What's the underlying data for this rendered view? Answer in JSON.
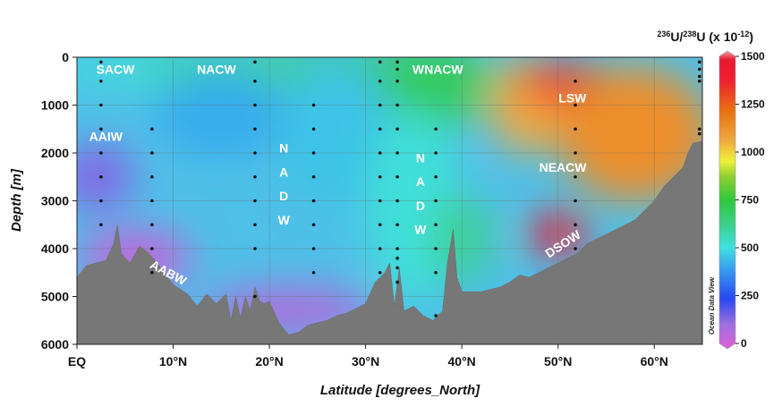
{
  "chart_data": {
    "type": "heatmap",
    "title": "",
    "xlabel": "Latitude [degrees_North]",
    "ylabel": "Depth [m]",
    "xlim": [
      0,
      65
    ],
    "ylim": [
      0,
      6000
    ],
    "x_ticks": [
      {
        "value": 0,
        "label": "EQ"
      },
      {
        "value": 10,
        "label": "10°N"
      },
      {
        "value": 20,
        "label": "20°N"
      },
      {
        "value": 30,
        "label": "30°N"
      },
      {
        "value": 40,
        "label": "40°N"
      },
      {
        "value": 50,
        "label": "50°N"
      },
      {
        "value": 60,
        "label": "60°N"
      }
    ],
    "y_ticks": [
      0,
      1000,
      2000,
      3000,
      4000,
      5000,
      6000
    ],
    "colorbar": {
      "title": {
        "base": "U/",
        "iso1": "236",
        "iso2": "238",
        "unit": "U (x 10",
        "exp": "-12",
        "close": ")"
      },
      "range": [
        0,
        1500
      ],
      "ticks": [
        0,
        250,
        500,
        750,
        1000,
        1250,
        1500
      ]
    },
    "credit": "Ocean Data View",
    "water_masses": [
      {
        "label": "SACW",
        "lat": 4.0,
        "depth": 250
      },
      {
        "label": "NACW",
        "lat": 14.5,
        "depth": 250
      },
      {
        "label": "WNACW",
        "lat": 37.5,
        "depth": 250
      },
      {
        "label": "LSW",
        "lat": 51.5,
        "depth": 850
      },
      {
        "label": "AAIW",
        "lat": 3.0,
        "depth": 1650
      },
      {
        "label": "NEACW",
        "lat": 50.5,
        "depth": 2300
      },
      {
        "label": "N",
        "lat": 21.5,
        "depth": 1900
      },
      {
        "label": "A",
        "lat": 21.5,
        "depth": 2400
      },
      {
        "label": "D",
        "lat": 21.5,
        "depth": 2900
      },
      {
        "label": "W",
        "lat": 21.5,
        "depth": 3400
      },
      {
        "label": "N",
        "lat": 35.7,
        "depth": 2100
      },
      {
        "label": "A",
        "lat": 35.7,
        "depth": 2600
      },
      {
        "label": "D",
        "lat": 35.7,
        "depth": 3100
      },
      {
        "label": "W",
        "lat": 35.7,
        "depth": 3600
      },
      {
        "label": "DSOW",
        "lat": 50.5,
        "depth": 3900,
        "rotate": -33
      },
      {
        "label": "AABW",
        "lat": 9.5,
        "depth": 4500,
        "rotate": 28
      }
    ],
    "stations": [
      {
        "lat": 2.5,
        "depths": [
          100,
          500,
          1000,
          1500,
          2000,
          2500,
          3000,
          3500
        ]
      },
      {
        "lat": 7.8,
        "depths": [
          1500,
          2000,
          2500,
          3000,
          3500,
          4000,
          4500
        ]
      },
      {
        "lat": 18.5,
        "depths": [
          100,
          500,
          1000,
          1500,
          2000,
          2500,
          3000,
          3500,
          4000,
          5000
        ]
      },
      {
        "lat": 24.6,
        "depths": [
          1000,
          1500,
          2000,
          2500,
          3000,
          3500,
          4000,
          4500
        ]
      },
      {
        "lat": 31.5,
        "depths": [
          100,
          500,
          1000,
          1500,
          2000,
          2500,
          3000,
          3500,
          4000,
          4500
        ]
      },
      {
        "lat": 33.3,
        "depths": [
          100,
          250,
          500,
          1000,
          1500,
          2000,
          2500,
          3000,
          3500,
          4000,
          4200,
          4400,
          4700
        ]
      },
      {
        "lat": 37.3,
        "depths": [
          1500,
          2000,
          2500,
          3000,
          3500,
          4000,
          4500,
          5400
        ]
      },
      {
        "lat": 51.8,
        "depths": [
          500,
          1000,
          1500,
          2000,
          2500,
          3000,
          3500,
          4000
        ]
      },
      {
        "lat": 64.7,
        "depths": [
          100,
          250,
          400,
          500,
          1500,
          1600
        ]
      }
    ],
    "bathymetry": [
      [
        0,
        4600
      ],
      [
        1,
        4350
      ],
      [
        2,
        4300
      ],
      [
        3,
        4250
      ],
      [
        3.8,
        3900
      ],
      [
        4.2,
        3500
      ],
      [
        4.6,
        4100
      ],
      [
        5.5,
        4300
      ],
      [
        6.5,
        3950
      ],
      [
        7.5,
        4100
      ],
      [
        8.5,
        4350
      ],
      [
        10,
        4750
      ],
      [
        11.5,
        4950
      ],
      [
        12.5,
        5200
      ],
      [
        13.5,
        4950
      ],
      [
        14.5,
        5150
      ],
      [
        15.5,
        4950
      ],
      [
        16,
        5500
      ],
      [
        16.5,
        5000
      ],
      [
        17,
        5450
      ],
      [
        17.5,
        5000
      ],
      [
        18,
        5300
      ],
      [
        18.5,
        4800
      ],
      [
        19,
        5100
      ],
      [
        19.5,
        5150
      ],
      [
        20,
        5100
      ],
      [
        21,
        5550
      ],
      [
        22,
        5800
      ],
      [
        23,
        5750
      ],
      [
        24,
        5600
      ],
      [
        25,
        5550
      ],
      [
        26,
        5500
      ],
      [
        27,
        5400
      ],
      [
        28,
        5350
      ],
      [
        29,
        5250
      ],
      [
        30,
        5150
      ],
      [
        31,
        4700
      ],
      [
        32,
        4500
      ],
      [
        32.5,
        4300
      ],
      [
        33,
        5200
      ],
      [
        33.5,
        4400
      ],
      [
        34,
        5300
      ],
      [
        35,
        5200
      ],
      [
        36,
        5400
      ],
      [
        37,
        5500
      ],
      [
        38,
        5300
      ],
      [
        38.5,
        4300
      ],
      [
        39.1,
        3600
      ],
      [
        39.5,
        4600
      ],
      [
        40,
        4900
      ],
      [
        41,
        4900
      ],
      [
        42,
        4900
      ],
      [
        43,
        4850
      ],
      [
        44,
        4800
      ],
      [
        45,
        4700
      ],
      [
        46,
        4550
      ],
      [
        47,
        4600
      ],
      [
        48,
        4500
      ],
      [
        49,
        4400
      ],
      [
        50,
        4300
      ],
      [
        51,
        4200
      ],
      [
        52,
        4100
      ],
      [
        53,
        3900
      ],
      [
        54,
        3800
      ],
      [
        55,
        3700
      ],
      [
        56,
        3600
      ],
      [
        57,
        3500
      ],
      [
        58,
        3400
      ],
      [
        59,
        3200
      ],
      [
        60,
        3000
      ],
      [
        61,
        2700
      ],
      [
        62,
        2500
      ],
      [
        63,
        2300
      ],
      [
        63.5,
        2000
      ],
      [
        64,
        1800
      ],
      [
        65,
        1750
      ]
    ],
    "field_blobs": [
      {
        "lat": 9,
        "depth": 200,
        "rx_deg": 11,
        "ry_m": 420,
        "value": 520
      },
      {
        "lat": 19,
        "depth": 200,
        "rx_deg": 12,
        "ry_m": 420,
        "value": 600
      },
      {
        "lat": 32,
        "depth": 250,
        "rx_deg": 11,
        "ry_m": 500,
        "value": 650
      },
      {
        "lat": 37,
        "depth": 600,
        "rx_deg": 6,
        "ry_m": 900,
        "value": 700
      },
      {
        "lat": 15,
        "depth": 1200,
        "rx_deg": 7,
        "ry_m": 900,
        "value": 420
      },
      {
        "lat": 27,
        "depth": 1600,
        "rx_deg": 6,
        "ry_m": 1500,
        "value": 460
      },
      {
        "lat": 35,
        "depth": 3100,
        "rx_deg": 5,
        "ry_m": 2000,
        "value": 520
      },
      {
        "lat": 40,
        "depth": 3800,
        "rx_deg": 3,
        "ry_m": 900,
        "value": 620
      },
      {
        "lat": 47,
        "depth": 1000,
        "rx_deg": 4,
        "ry_m": 1000,
        "value": 1050
      },
      {
        "lat": 51,
        "depth": 550,
        "rx_deg": 5,
        "ry_m": 420,
        "value": 1380
      },
      {
        "lat": 58,
        "depth": 1600,
        "rx_deg": 8,
        "ry_m": 1400,
        "value": 1120
      },
      {
        "lat": 50,
        "depth": 3700,
        "rx_deg": 3,
        "ry_m": 450,
        "value": 1420
      },
      {
        "lat": 2,
        "depth": 2500,
        "rx_deg": 4,
        "ry_m": 700,
        "value": 150
      },
      {
        "lat": 6,
        "depth": 4200,
        "rx_deg": 6,
        "ry_m": 600,
        "value": 60
      },
      {
        "lat": 22,
        "depth": 5300,
        "rx_deg": 9,
        "ry_m": 500,
        "value": 90
      }
    ]
  }
}
